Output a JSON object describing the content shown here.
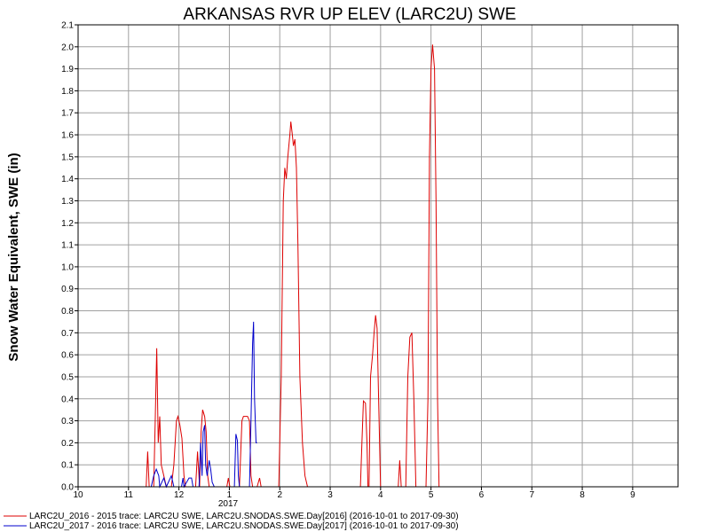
{
  "colors": {
    "red": "#dd0000",
    "blue": "#0000cc",
    "grid": "#a0a0a0",
    "axis": "#000000"
  },
  "chart_data": {
    "type": "line",
    "title": "ARKANSAS RVR UP ELEV (LARC2U) SWE",
    "ylabel": "Snow Water Equivalent, SWE (in)",
    "xlabel": "",
    "x_axis_unit": "month",
    "x_range": [
      10,
      21.9
    ],
    "xtick_labels": [
      "10",
      "11",
      "12",
      "1",
      "2",
      "3",
      "4",
      "5",
      "6",
      "7",
      "8",
      "9"
    ],
    "year_label": "2017",
    "ylim": [
      0,
      2.1
    ],
    "yticks": [
      "0.0",
      "0.1",
      "0.2",
      "0.3",
      "0.4",
      "0.5",
      "0.6",
      "0.7",
      "0.8",
      "0.9",
      "1.0",
      "1.1",
      "1.2",
      "1.3",
      "1.4",
      "1.5",
      "1.6",
      "1.7",
      "1.8",
      "1.9",
      "2.0",
      "2.1"
    ],
    "grid": true,
    "legend_placement": "bottom-left",
    "series": [
      {
        "name": "LARC2U_2016 - 2015 trace: LARC2U SWE, LARC2U.SNODAS.SWE.Day[2016] (2016-10-01 to 2017-09-30)",
        "color": "#dd0000",
        "points": [
          [
            10.0,
            0
          ],
          [
            11.35,
            0
          ],
          [
            11.38,
            0.16
          ],
          [
            11.41,
            0
          ],
          [
            11.5,
            0
          ],
          [
            11.53,
            0.3
          ],
          [
            11.56,
            0.63
          ],
          [
            11.59,
            0.2
          ],
          [
            11.62,
            0.32
          ],
          [
            11.65,
            0.1
          ],
          [
            11.7,
            0.05
          ],
          [
            11.75,
            0
          ],
          [
            11.85,
            0
          ],
          [
            11.9,
            0.1
          ],
          [
            11.95,
            0.3
          ],
          [
            11.98,
            0.32
          ],
          [
            12.02,
            0.28
          ],
          [
            12.06,
            0.22
          ],
          [
            12.1,
            0.05
          ],
          [
            12.13,
            0
          ],
          [
            12.33,
            0
          ],
          [
            12.37,
            0.16
          ],
          [
            12.41,
            0
          ],
          [
            12.44,
            0.25
          ],
          [
            12.47,
            0.35
          ],
          [
            12.51,
            0.32
          ],
          [
            12.54,
            0.25
          ],
          [
            12.57,
            0.05
          ],
          [
            12.6,
            0
          ],
          [
            12.95,
            0
          ],
          [
            12.98,
            0.04
          ],
          [
            13.01,
            0
          ],
          [
            13.2,
            0
          ],
          [
            13.25,
            0.3
          ],
          [
            13.28,
            0.32
          ],
          [
            13.36,
            0.32
          ],
          [
            13.4,
            0.3
          ],
          [
            13.43,
            0.05
          ],
          [
            13.46,
            0
          ],
          [
            13.55,
            0
          ],
          [
            13.6,
            0.04
          ],
          [
            13.63,
            0
          ],
          [
            13.98,
            0
          ],
          [
            14.03,
            0.5
          ],
          [
            14.07,
            1.3
          ],
          [
            14.1,
            1.45
          ],
          [
            14.13,
            1.4
          ],
          [
            14.16,
            1.5
          ],
          [
            14.2,
            1.6
          ],
          [
            14.22,
            1.66
          ],
          [
            14.25,
            1.6
          ],
          [
            14.27,
            1.55
          ],
          [
            14.3,
            1.58
          ],
          [
            14.33,
            1.45
          ],
          [
            14.36,
            1.1
          ],
          [
            14.4,
            0.5
          ],
          [
            14.45,
            0.2
          ],
          [
            14.5,
            0.05
          ],
          [
            14.55,
            0
          ],
          [
            15.6,
            0
          ],
          [
            15.63,
            0.2
          ],
          [
            15.66,
            0.39
          ],
          [
            15.7,
            0.38
          ],
          [
            15.73,
            0.2
          ],
          [
            15.75,
            0
          ],
          [
            15.77,
            0
          ],
          [
            15.8,
            0.5
          ],
          [
            15.84,
            0.6
          ],
          [
            15.87,
            0.7
          ],
          [
            15.9,
            0.78
          ],
          [
            15.93,
            0.72
          ],
          [
            15.96,
            0.4
          ],
          [
            16.0,
            0
          ],
          [
            16.35,
            0
          ],
          [
            16.38,
            0.12
          ],
          [
            16.41,
            0
          ],
          [
            16.5,
            0
          ],
          [
            16.54,
            0.5
          ],
          [
            16.58,
            0.68
          ],
          [
            16.62,
            0.7
          ],
          [
            16.66,
            0.4
          ],
          [
            16.7,
            0
          ],
          [
            16.9,
            0
          ],
          [
            16.94,
            0.4
          ],
          [
            16.97,
            1.5
          ],
          [
            17.0,
            1.9
          ],
          [
            17.03,
            2.01
          ],
          [
            17.07,
            1.9
          ],
          [
            17.1,
            1.3
          ],
          [
            17.13,
            0.4
          ],
          [
            17.16,
            0
          ],
          [
            21.9,
            0
          ]
        ]
      },
      {
        "name": "LARC2U_2017 - 2016 trace: LARC2U SWE, LARC2U.SNODAS.SWE.Day[2017] (2016-10-01 to 2017-09-30)",
        "color": "#0000cc",
        "points": [
          [
            10.0,
            0
          ],
          [
            11.45,
            0
          ],
          [
            11.5,
            0.05
          ],
          [
            11.55,
            0.08
          ],
          [
            11.6,
            0.05
          ],
          [
            11.62,
            0
          ],
          [
            11.7,
            0.04
          ],
          [
            11.75,
            0
          ],
          [
            11.85,
            0.05
          ],
          [
            11.9,
            0
          ],
          [
            12.05,
            0
          ],
          [
            12.08,
            0.04
          ],
          [
            12.1,
            0
          ],
          [
            12.2,
            0.04
          ],
          [
            12.25,
            0.04
          ],
          [
            12.28,
            0
          ],
          [
            12.4,
            0
          ],
          [
            12.43,
            0.2
          ],
          [
            12.46,
            0.05
          ],
          [
            12.48,
            0.25
          ],
          [
            12.51,
            0.28
          ],
          [
            12.53,
            0.1
          ],
          [
            12.56,
            0.05
          ],
          [
            12.6,
            0.12
          ],
          [
            12.63,
            0.08
          ],
          [
            12.66,
            0.02
          ],
          [
            12.7,
            0
          ],
          [
            13.1,
            0
          ],
          [
            13.13,
            0.24
          ],
          [
            13.16,
            0.21
          ],
          [
            13.18,
            0.05
          ],
          [
            13.2,
            0
          ],
          [
            13.4,
            0
          ],
          [
            13.43,
            0.3
          ],
          [
            13.46,
            0.65
          ],
          [
            13.48,
            0.75
          ],
          [
            13.5,
            0.4
          ],
          [
            13.53,
            0.2
          ],
          [
            13.55,
            0.2
          ]
        ]
      }
    ]
  }
}
